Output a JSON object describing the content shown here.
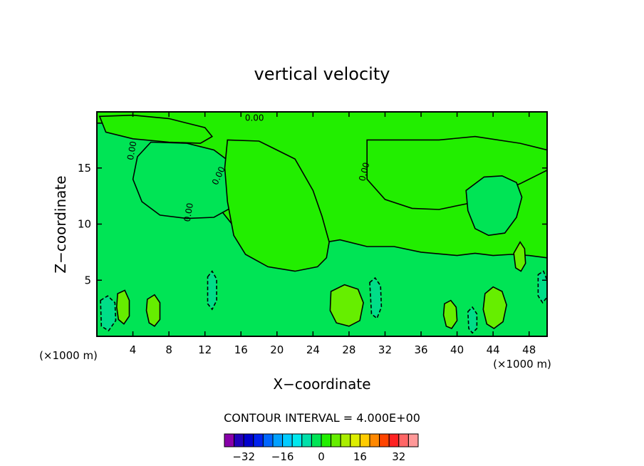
{
  "chart_data": {
    "type": "heatmap",
    "title": "vertical velocity",
    "xlabel": "X−coordinate",
    "ylabel": "Z−coordinate",
    "x_unit_left": "(×1000 m)",
    "x_unit_right": "(×1000 m)",
    "xlim": [
      0,
      50
    ],
    "ylim": [
      0,
      20
    ],
    "x_ticks": [
      "4",
      "8",
      "12",
      "16",
      "20",
      "24",
      "28",
      "32",
      "36",
      "40",
      "44",
      "48"
    ],
    "x_tick_values": [
      4,
      8,
      12,
      16,
      20,
      24,
      28,
      32,
      36,
      40,
      44,
      48
    ],
    "y_ticks": [
      "5",
      "10",
      "15"
    ],
    "y_tick_values": [
      5,
      10,
      15
    ],
    "contour_interval_label": "CONTOUR INTERVAL = 4.000E+00",
    "contour_labels": [
      "0.00",
      "0.00",
      "0.00",
      "0.00",
      "0.00"
    ],
    "background_color": "#22ee00",
    "regions": [
      {
        "kind": "negative",
        "color": "#00e455",
        "points": [
          [
            0.3,
            19
          ],
          [
            4,
            19
          ],
          [
            7,
            18.6
          ],
          [
            10,
            17
          ],
          [
            12,
            14
          ],
          [
            13,
            12
          ],
          [
            14,
            11
          ],
          [
            16,
            9
          ],
          [
            18,
            8
          ],
          [
            21,
            8.5
          ],
          [
            24,
            8.2
          ],
          [
            27,
            8.6
          ],
          [
            30,
            8
          ],
          [
            33,
            8
          ],
          [
            36,
            7.5
          ],
          [
            40,
            7.2
          ],
          [
            42,
            7.4
          ],
          [
            44,
            7.2
          ],
          [
            46,
            7.3
          ],
          [
            48,
            7.2
          ],
          [
            50,
            7
          ],
          [
            50,
            0
          ],
          [
            0,
            0
          ],
          [
            0,
            19
          ]
        ]
      },
      {
        "kind": "negative",
        "color": "#00e455",
        "points": [
          [
            6,
            17.3
          ],
          [
            10,
            17.2
          ],
          [
            13,
            16.6
          ],
          [
            15,
            15.4
          ],
          [
            16,
            13
          ],
          [
            15,
            11.5
          ],
          [
            13,
            10.6
          ],
          [
            10,
            10.5
          ],
          [
            7,
            10.8
          ],
          [
            5,
            12
          ],
          [
            4,
            14
          ],
          [
            4.5,
            16
          ]
        ]
      },
      {
        "kind": "positive",
        "color": "#22ee00",
        "points": [
          [
            14.5,
            17.5
          ],
          [
            18,
            17.4
          ],
          [
            22,
            15.8
          ],
          [
            24,
            13
          ],
          [
            25,
            10.7
          ],
          [
            25.8,
            8.4
          ],
          [
            25.5,
            7
          ],
          [
            24.5,
            6.2
          ],
          [
            22,
            5.8
          ],
          [
            19,
            6.2
          ],
          [
            16.5,
            7.3
          ],
          [
            15.2,
            9
          ],
          [
            14.5,
            12
          ],
          [
            14.2,
            15
          ]
        ]
      },
      {
        "kind": "positive",
        "color": "#22ee00",
        "points": [
          [
            30,
            17.5
          ],
          [
            38,
            17.5
          ],
          [
            42,
            17.8
          ],
          [
            47,
            17.2
          ],
          [
            50,
            16.6
          ],
          [
            50,
            14.8
          ],
          [
            47,
            13.6
          ],
          [
            44,
            12.6
          ],
          [
            41,
            11.8
          ],
          [
            38,
            11.3
          ],
          [
            35,
            11.4
          ],
          [
            32,
            12.2
          ],
          [
            30,
            14
          ]
        ]
      },
      {
        "kind": "positive",
        "color": "#22ee00",
        "points": [
          [
            0.3,
            19.6
          ],
          [
            4,
            19.7
          ],
          [
            8,
            19.4
          ],
          [
            12,
            18.6
          ],
          [
            12.8,
            17.8
          ],
          [
            11.5,
            17.2
          ],
          [
            8,
            17.3
          ],
          [
            4,
            17.6
          ],
          [
            1,
            18.2
          ]
        ]
      },
      {
        "kind": "negative",
        "color": "#00e455",
        "points": [
          [
            41,
            13
          ],
          [
            43,
            14.2
          ],
          [
            45,
            14.3
          ],
          [
            46.6,
            13.7
          ],
          [
            47.2,
            12.4
          ],
          [
            46.6,
            10.6
          ],
          [
            45.3,
            9.2
          ],
          [
            43.5,
            9
          ],
          [
            42,
            9.6
          ],
          [
            41.2,
            11.2
          ]
        ]
      },
      {
        "kind": "positive",
        "color": "#66ee00",
        "points": [
          [
            2.3,
            3.8
          ],
          [
            3.1,
            4.1
          ],
          [
            3.6,
            3.2
          ],
          [
            3.6,
            1.8
          ],
          [
            3,
            1.1
          ],
          [
            2.4,
            1.5
          ],
          [
            2.2,
            2.6
          ]
        ]
      },
      {
        "kind": "positive",
        "color": "#66ee00",
        "points": [
          [
            5.6,
            3.3
          ],
          [
            6.4,
            3.7
          ],
          [
            7,
            3
          ],
          [
            7,
            1.5
          ],
          [
            6.4,
            0.9
          ],
          [
            5.8,
            1.2
          ],
          [
            5.5,
            2.3
          ]
        ]
      },
      {
        "kind": "positive",
        "color": "#66ee00",
        "points": [
          [
            26,
            4
          ],
          [
            27.5,
            4.6
          ],
          [
            29,
            4.2
          ],
          [
            29.6,
            3
          ],
          [
            29.2,
            1.4
          ],
          [
            28,
            0.9
          ],
          [
            26.6,
            1.2
          ],
          [
            25.9,
            2.3
          ]
        ]
      },
      {
        "kind": "positive",
        "color": "#66ee00",
        "points": [
          [
            38.6,
            2.9
          ],
          [
            39.3,
            3.2
          ],
          [
            39.9,
            2.6
          ],
          [
            40,
            1.4
          ],
          [
            39.4,
            0.7
          ],
          [
            38.8,
            0.9
          ],
          [
            38.5,
            1.9
          ]
        ]
      },
      {
        "kind": "positive",
        "color": "#66ee00",
        "points": [
          [
            43.1,
            3.8
          ],
          [
            44,
            4.4
          ],
          [
            45,
            4
          ],
          [
            45.5,
            2.8
          ],
          [
            45.1,
            1.3
          ],
          [
            44.1,
            0.7
          ],
          [
            43.3,
            1.1
          ],
          [
            42.9,
            2.4
          ]
        ]
      },
      {
        "kind": "positive",
        "color": "#66ee00",
        "points": [
          [
            46.3,
            7.4
          ],
          [
            47,
            8.4
          ],
          [
            47.5,
            7.8
          ],
          [
            47.6,
            6.5
          ],
          [
            47.1,
            5.8
          ],
          [
            46.5,
            6.1
          ]
        ]
      },
      {
        "kind": "negative",
        "color": "#00dd88",
        "points": [
          [
            0.4,
            3.2
          ],
          [
            1.2,
            3.6
          ],
          [
            2,
            3
          ],
          [
            2.1,
            1.4
          ],
          [
            1.3,
            0.5
          ],
          [
            0.5,
            0.9
          ]
        ]
      },
      {
        "kind": "negative",
        "color": "#00dd88",
        "points": [
          [
            12.3,
            5.3
          ],
          [
            12.8,
            5.8
          ],
          [
            13.3,
            5.1
          ],
          [
            13.3,
            3.2
          ],
          [
            12.8,
            2.4
          ],
          [
            12.3,
            2.9
          ]
        ]
      },
      {
        "kind": "negative",
        "color": "#00dd88",
        "points": [
          [
            30.3,
            4.8
          ],
          [
            30.9,
            5.2
          ],
          [
            31.5,
            4.5
          ],
          [
            31.6,
            2.6
          ],
          [
            31.1,
            1.6
          ],
          [
            30.5,
            2
          ]
        ]
      },
      {
        "kind": "negative",
        "color": "#00dd88",
        "points": [
          [
            41.2,
            2.2
          ],
          [
            41.7,
            2.6
          ],
          [
            42.2,
            2
          ],
          [
            42.2,
            0.7
          ],
          [
            41.7,
            0.3
          ],
          [
            41.3,
            0.7
          ]
        ]
      },
      {
        "kind": "negative",
        "color": "#00dd88",
        "points": [
          [
            49,
            5.5
          ],
          [
            49.6,
            5.8
          ],
          [
            50,
            5
          ],
          [
            50,
            3.5
          ],
          [
            49.5,
            3
          ],
          [
            49,
            3.6
          ]
        ]
      }
    ],
    "colorbar": {
      "ticks": [
        "−32",
        "−16",
        "0",
        "16",
        "32"
      ],
      "tick_values": [
        -32,
        -16,
        0,
        16,
        32
      ],
      "colors": [
        "#8800aa",
        "#2200bb",
        "#0000cc",
        "#0022ee",
        "#0066ff",
        "#00a0ff",
        "#00cbff",
        "#00e8ee",
        "#00e0aa",
        "#00e455",
        "#22ee00",
        "#66ee00",
        "#aaee00",
        "#ddee00",
        "#ffcc00",
        "#ff8800",
        "#ff4400",
        "#ff2222",
        "#ff6666",
        "#ff9999"
      ]
    }
  }
}
